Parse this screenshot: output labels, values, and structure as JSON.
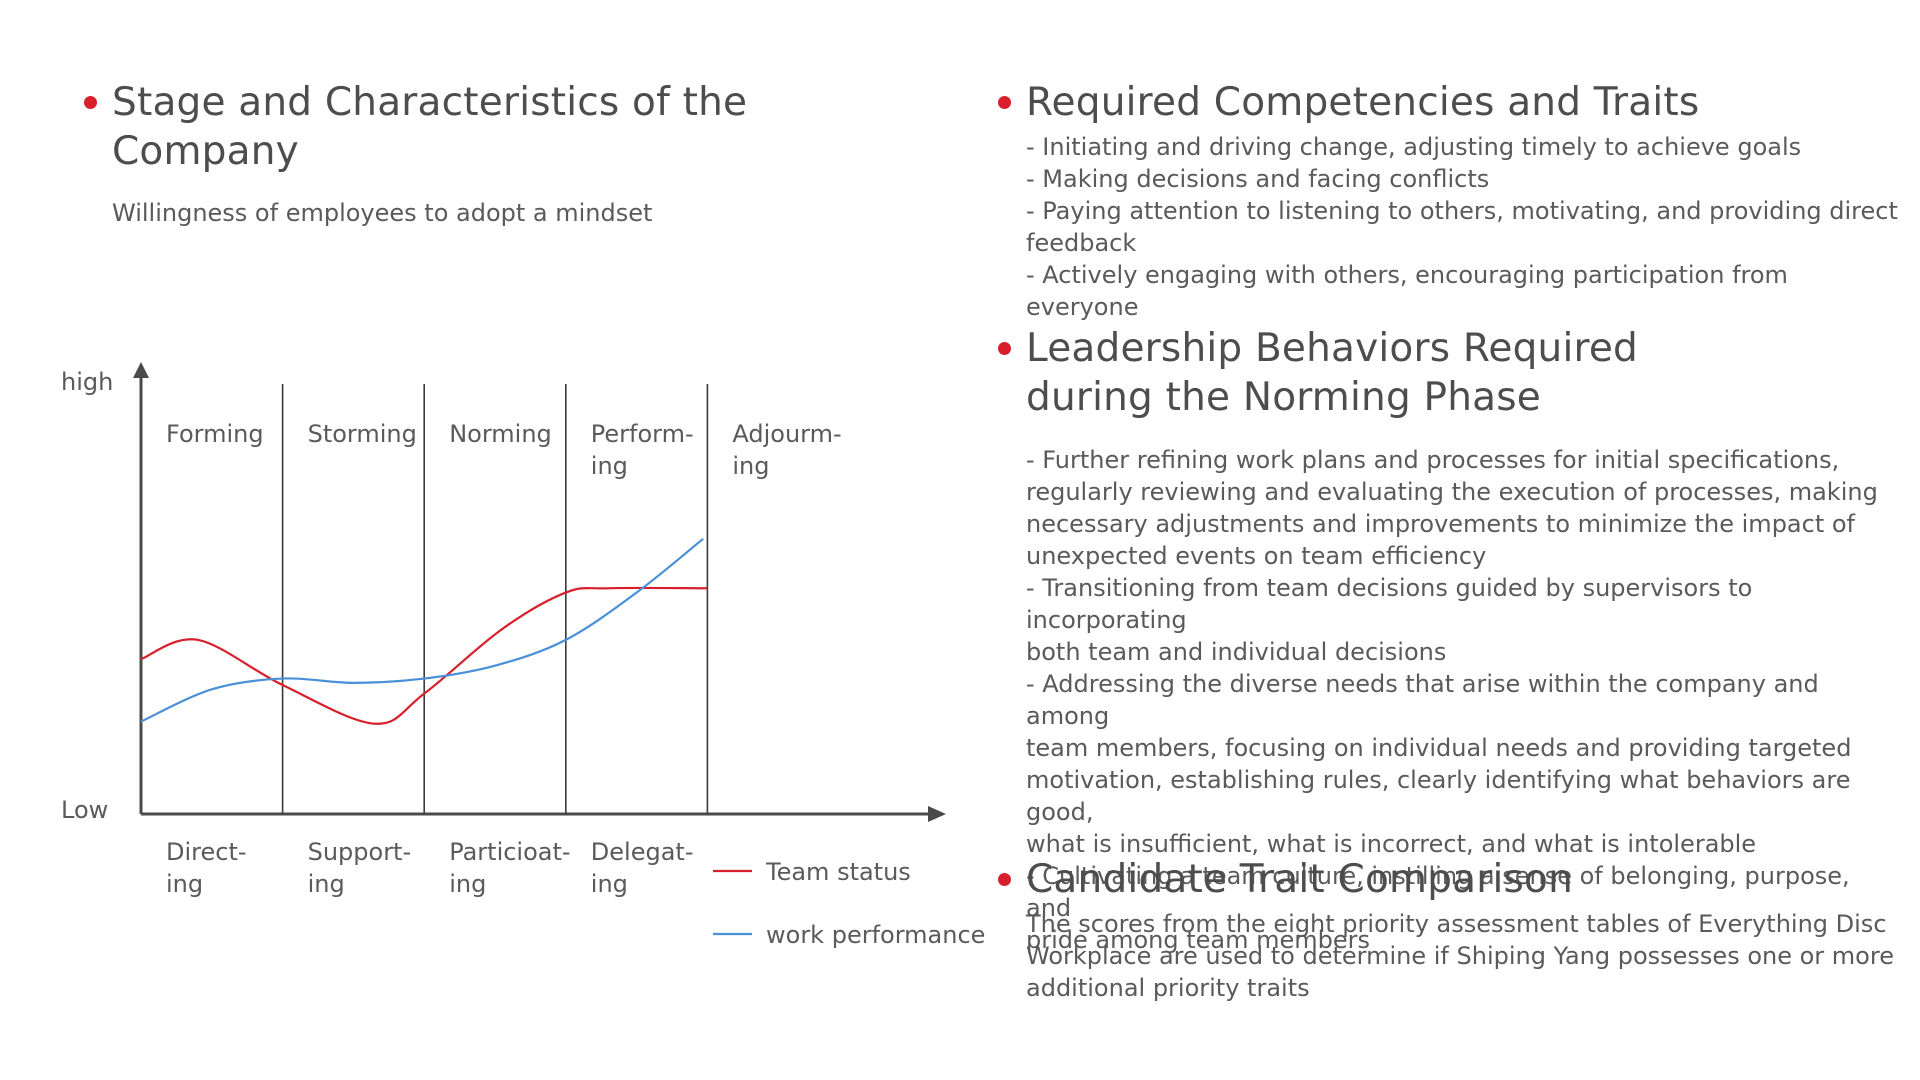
{
  "left": {
    "title": "Stage and Characteristics of the\nCompany",
    "subtitle": "Willingness of employees to adopt a mindset"
  },
  "chart_data": {
    "type": "line",
    "y_axis_labels": {
      "top": "high",
      "bottom": "Low"
    },
    "stages": [
      [
        "Forming"
      ],
      [
        "Storming"
      ],
      [
        "Norming"
      ],
      [
        "Perform-",
        "ing"
      ],
      [
        "Adjourm-",
        "ing"
      ]
    ],
    "styles": [
      [
        "Direct-",
        "ing"
      ],
      [
        "Support-",
        "ing"
      ],
      [
        "Particioat-",
        "ing"
      ],
      [
        "Delegat-",
        "ing"
      ]
    ],
    "x_range": [
      0,
      5
    ],
    "y_range": [
      0,
      1
    ],
    "series": [
      {
        "name": "Team status",
        "color": "#d8202c",
        "points": [
          [
            0,
            0.36
          ],
          [
            0.4,
            0.405
          ],
          [
            1.0,
            0.3
          ],
          [
            1.65,
            0.21
          ],
          [
            2.0,
            0.28
          ],
          [
            2.55,
            0.43
          ],
          [
            3.0,
            0.515
          ],
          [
            3.3,
            0.525
          ],
          [
            4.0,
            0.525
          ]
        ]
      },
      {
        "name": "work performance",
        "color": "#4a90d9",
        "points": [
          [
            0,
            0.215
          ],
          [
            0.5,
            0.29
          ],
          [
            1.0,
            0.315
          ],
          [
            1.5,
            0.305
          ],
          [
            2.0,
            0.315
          ],
          [
            2.5,
            0.345
          ],
          [
            3.0,
            0.405
          ],
          [
            3.5,
            0.515
          ],
          [
            3.97,
            0.64
          ]
        ]
      }
    ]
  },
  "right": {
    "competencies": {
      "title": "Required Competencies and Traits",
      "body": "- Initiating and driving change, adjusting timely to achieve goals\n- Making decisions and facing conflicts\n- Paying attention to listening to others, motivating, and providing direct\nfeedback\n- Actively engaging with others, encouraging participation from everyone"
    },
    "leadership": {
      "title": "Leadership Behaviors Required\nduring the Norming Phase",
      "body": "- Further refining work plans and processes for initial specifications,\nregularly reviewing and evaluating the execution of processes, making\nnecessary adjustments and improvements to minimize the impact of\nunexpected events on team efficiency\n- Transitioning from team decisions guided by supervisors to incorporating\nboth team and individual decisions\n- Addressing the diverse needs that arise within the company and among\nteam members, focusing on individual needs and providing targeted\nmotivation, establishing rules, clearly identifying what behaviors are good,\nwhat is insufficient, what is incorrect, and what is intolerable\n- Cultivating a team culture, instilling a sense of belonging, purpose, and\npride among team members"
    },
    "candidate": {
      "title": "Candidate Trait Comparison",
      "body": "The scores from the eight priority assessment tables of Everything Disc\nWorkplace are used to determine if Shiping Yang possesses one or more\nadditional priority traits"
    }
  }
}
